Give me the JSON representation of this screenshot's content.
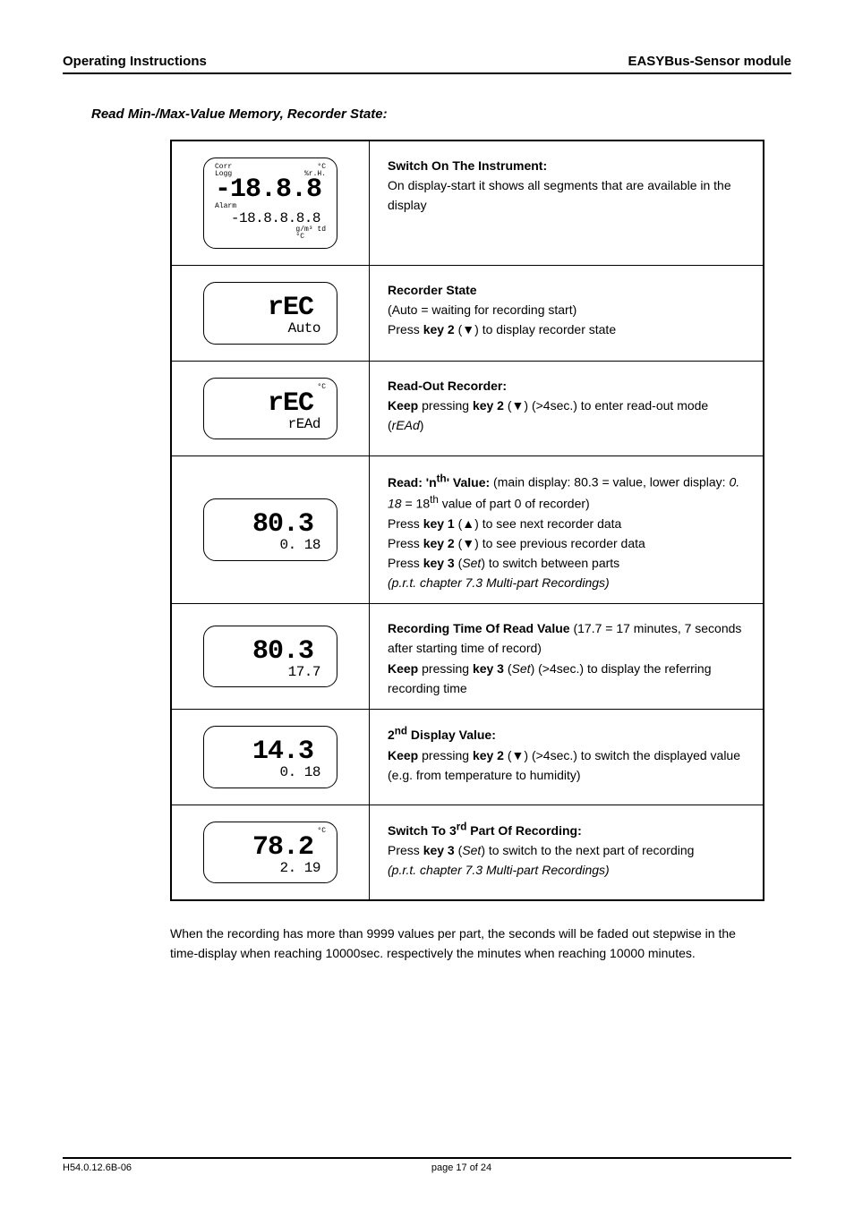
{
  "header": {
    "left": "Operating Instructions",
    "right": "EASYBus-Sensor module"
  },
  "section_title": "Read Min-/Max-Value Memory, Recorder State:",
  "rows": [
    {
      "lcd": {
        "annun_top_left": "Corr\nLogg",
        "annun_top_right": "°C\n%r.H.",
        "main": "-18.8.8",
        "annun_mid_left": "Alarm",
        "sub": "-18.8.8.8.8",
        "annun_bot_right": "g/m³ td\n°C",
        "showAll": true
      },
      "desc_html": "<b>Switch On The Instrument:</b><br>On display-start it shows all segments that are available in the display"
    },
    {
      "lcd": {
        "main": "rEC",
        "sub": "Auto"
      },
      "desc_html": "<b>Recorder State</b><br>(Auto = waiting for recording start)<br>Press <b>key 2</b> (▼) to display recorder state"
    },
    {
      "lcd": {
        "annun_top_right": "°C",
        "main": "rEC",
        "sub": "rEAd"
      },
      "desc_html": "<b>Read-Out Recorder:</b><br><b>Keep</b> pressing <b>key 2</b> (▼) (>4sec.) to enter read-out mode (<i>rEAd</i>)"
    },
    {
      "lcd": {
        "main": "80.3",
        "sub": "0.  18",
        "tall": true
      },
      "desc_html": "<b>Read: 'n<sup>th</sup>' Value:</b> (main display: 80.3 = value, lower display: <i>0. 18</i> = 18<sup>th</sup> value of part 0 of recorder)<br>Press <b>key 1</b> (▲) to see next recorder data<br>Press <b>key 2</b> (▼) to see previous recorder data<br>Press <b>key 3</b> (<i>Set</i>) to switch between parts<br><i>(p.r.t. chapter 7.3 Multi-part Recordings)</i>"
    },
    {
      "lcd": {
        "main": "80.3",
        "sub": "17.7"
      },
      "desc_html": "<b>Recording Time Of Read Value</b> (17.7 = 17 minutes, 7 seconds after starting time of record)<br><b>Keep</b> pressing <b>key 3</b> (<i>Set</i>) (>4sec.) to display the referring recording time"
    },
    {
      "lcd": {
        "main": "14.3",
        "sub": "0.  18"
      },
      "desc_html": "<b>2<sup>nd</sup> Display Value:</b><br><b>Keep</b> pressing <b>key 2</b> (▼) (>4sec.) to switch the displayed value (e.g. from temperature to humidity)"
    },
    {
      "lcd": {
        "annun_top_right": "°C",
        "main": "78.2",
        "sub": "2.  19"
      },
      "desc_html": "<b>Switch To 3<sup>rd</sup> Part Of Recording:</b><br>Press <b>key 3</b> (<i>Set</i>) to switch to the next part of recording<br><i>(p.r.t. chapter 7.3 Multi-part Recordings)</i>"
    }
  ],
  "footnote": "When the recording has more than 9999 values per part, the seconds will be faded out stepwise in the time-display when reaching 10000sec. respectively the minutes when reaching 10000 minutes.",
  "footer": {
    "left": "H54.0.12.6B-06",
    "center": "page 17 of 24",
    "right": ""
  }
}
